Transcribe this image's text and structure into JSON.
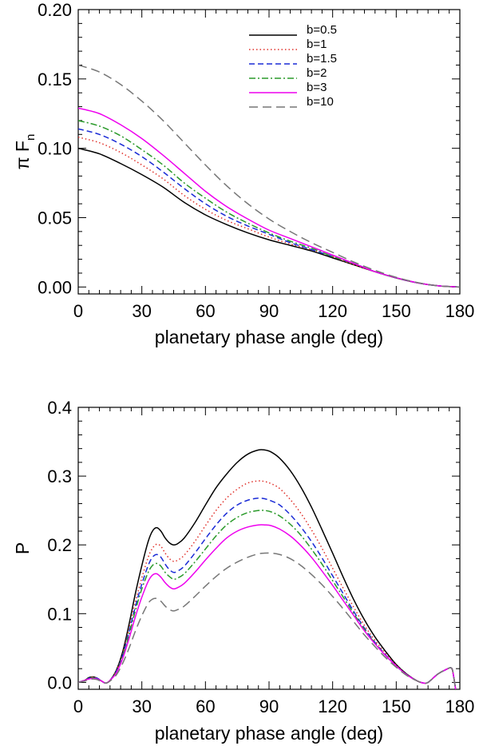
{
  "chart_data": [
    {
      "type": "line",
      "title": "",
      "xlabel": "planetary phase angle (deg)",
      "ylabel_main": "π F",
      "ylabel_sub": "n",
      "xlim": [
        0,
        180
      ],
      "ylim": [
        -0.005,
        0.2
      ],
      "xticks": [
        0,
        30,
        60,
        90,
        120,
        150,
        180
      ],
      "xtick_labels": [
        "0",
        "30",
        "60",
        "90",
        "120",
        "150",
        "180"
      ],
      "yticks": [
        0.0,
        0.05,
        0.1,
        0.15,
        0.2
      ],
      "ytick_labels": [
        "0.00",
        "0.05",
        "0.10",
        "0.15",
        "0.20"
      ],
      "legend": "top-right",
      "x": [
        0,
        10,
        20,
        30,
        40,
        50,
        60,
        70,
        80,
        90,
        100,
        110,
        120,
        130,
        140,
        150,
        160,
        170,
        180
      ],
      "series": [
        {
          "name": "b=0.5",
          "color": "#000000",
          "dash": "",
          "values": [
            0.1,
            0.096,
            0.089,
            0.081,
            0.072,
            0.061,
            0.052,
            0.045,
            0.039,
            0.034,
            0.03,
            0.026,
            0.021,
            0.016,
            0.011,
            0.0065,
            0.003,
            0.0008,
            0.0
          ]
        },
        {
          "name": "b=1",
          "color": "#e0302a",
          "dash": "1.5,3",
          "values": [
            0.108,
            0.104,
            0.097,
            0.088,
            0.078,
            0.066,
            0.056,
            0.048,
            0.042,
            0.036,
            0.031,
            0.027,
            0.022,
            0.016,
            0.011,
            0.0065,
            0.003,
            0.0008,
            0.0
          ]
        },
        {
          "name": "b=1.5",
          "color": "#1a2bd6",
          "dash": "7,4",
          "values": [
            0.114,
            0.11,
            0.103,
            0.094,
            0.083,
            0.071,
            0.06,
            0.051,
            0.044,
            0.038,
            0.032,
            0.027,
            0.022,
            0.017,
            0.011,
            0.0066,
            0.003,
            0.0008,
            0.0
          ]
        },
        {
          "name": "b=2",
          "color": "#2a9a2a",
          "dash": "8,3,2,3",
          "values": [
            0.12,
            0.116,
            0.109,
            0.099,
            0.088,
            0.075,
            0.064,
            0.054,
            0.046,
            0.039,
            0.033,
            0.028,
            0.022,
            0.017,
            0.011,
            0.0066,
            0.003,
            0.0008,
            0.0
          ]
        },
        {
          "name": "b=3",
          "color": "#ee00ee",
          "dash": "",
          "values": [
            0.129,
            0.125,
            0.117,
            0.107,
            0.095,
            0.082,
            0.069,
            0.058,
            0.049,
            0.041,
            0.035,
            0.029,
            0.023,
            0.017,
            0.011,
            0.0067,
            0.003,
            0.0008,
            0.0
          ]
        },
        {
          "name": "b=10",
          "color": "#777777",
          "dash": "11,6",
          "values": [
            0.16,
            0.155,
            0.146,
            0.134,
            0.12,
            0.104,
            0.088,
            0.073,
            0.06,
            0.049,
            0.04,
            0.032,
            0.025,
            0.018,
            0.012,
            0.007,
            0.0032,
            0.0008,
            0.0
          ]
        }
      ]
    },
    {
      "type": "line",
      "title": "",
      "xlabel": "planetary phase angle (deg)",
      "ylabel_main": "P",
      "ylabel_sub": "",
      "xlim": [
        0,
        180
      ],
      "ylim": [
        -0.01,
        0.4
      ],
      "xticks": [
        0,
        30,
        60,
        90,
        120,
        150,
        180
      ],
      "xtick_labels": [
        "0",
        "30",
        "60",
        "90",
        "120",
        "150",
        "180"
      ],
      "yticks": [
        0.0,
        0.1,
        0.2,
        0.3,
        0.4
      ],
      "ytick_labels": [
        "0.0",
        "0.1",
        "0.2",
        "0.3",
        "0.4"
      ],
      "legend": "none",
      "x": [
        0,
        3,
        5,
        7,
        9,
        11,
        13,
        15,
        18,
        21,
        24,
        27,
        30,
        33,
        35,
        37,
        39,
        41,
        43,
        45,
        47,
        50,
        55,
        60,
        65,
        70,
        75,
        80,
        85,
        88,
        91,
        95,
        100,
        105,
        110,
        115,
        120,
        125,
        130,
        135,
        140,
        145,
        150,
        155,
        160,
        163,
        165,
        168,
        170,
        173,
        176,
        177,
        178
      ],
      "series": [
        {
          "name": "b=0.5",
          "color": "#000000",
          "dash": "",
          "values": [
            0.0,
            0.003,
            0.007,
            0.008,
            0.006,
            0.002,
            -0.001,
            0.003,
            0.018,
            0.045,
            0.085,
            0.13,
            0.17,
            0.205,
            0.22,
            0.225,
            0.22,
            0.21,
            0.203,
            0.2,
            0.202,
            0.21,
            0.232,
            0.258,
            0.283,
            0.303,
            0.32,
            0.332,
            0.338,
            0.338,
            0.335,
            0.326,
            0.308,
            0.284,
            0.255,
            0.222,
            0.188,
            0.153,
            0.12,
            0.091,
            0.066,
            0.045,
            0.026,
            0.012,
            0.002,
            -0.001,
            0.0,
            0.008,
            0.013,
            0.018,
            0.021,
            0.01,
            -0.01
          ]
        },
        {
          "name": "b=1",
          "color": "#e0302a",
          "dash": "1.5,3",
          "values": [
            0.0,
            0.003,
            0.006,
            0.008,
            0.006,
            0.002,
            -0.001,
            0.003,
            0.017,
            0.042,
            0.078,
            0.118,
            0.152,
            0.182,
            0.195,
            0.201,
            0.198,
            0.188,
            0.18,
            0.176,
            0.178,
            0.185,
            0.205,
            0.228,
            0.25,
            0.268,
            0.281,
            0.29,
            0.293,
            0.292,
            0.289,
            0.282,
            0.266,
            0.246,
            0.222,
            0.195,
            0.166,
            0.137,
            0.109,
            0.083,
            0.061,
            0.042,
            0.025,
            0.011,
            0.002,
            -0.001,
            0.0,
            0.008,
            0.013,
            0.018,
            0.021,
            0.01,
            -0.01
          ]
        },
        {
          "name": "b=1.5",
          "color": "#1a2bd6",
          "dash": "7,4",
          "values": [
            0.0,
            0.003,
            0.006,
            0.007,
            0.006,
            0.002,
            -0.001,
            0.003,
            0.016,
            0.04,
            0.074,
            0.111,
            0.143,
            0.17,
            0.182,
            0.186,
            0.182,
            0.172,
            0.164,
            0.16,
            0.162,
            0.169,
            0.188,
            0.209,
            0.229,
            0.246,
            0.258,
            0.265,
            0.268,
            0.267,
            0.264,
            0.258,
            0.244,
            0.226,
            0.205,
            0.181,
            0.155,
            0.129,
            0.103,
            0.079,
            0.058,
            0.04,
            0.024,
            0.011,
            0.002,
            -0.001,
            0.0,
            0.008,
            0.013,
            0.018,
            0.021,
            0.01,
            -0.01
          ]
        },
        {
          "name": "b=2",
          "color": "#2a9a2a",
          "dash": "8,3,2,3",
          "values": [
            0.0,
            0.003,
            0.006,
            0.007,
            0.005,
            0.002,
            -0.001,
            0.003,
            0.015,
            0.038,
            0.07,
            0.105,
            0.136,
            0.16,
            0.17,
            0.173,
            0.169,
            0.16,
            0.154,
            0.15,
            0.152,
            0.158,
            0.175,
            0.194,
            0.213,
            0.229,
            0.24,
            0.247,
            0.25,
            0.25,
            0.248,
            0.242,
            0.23,
            0.214,
            0.194,
            0.172,
            0.148,
            0.124,
            0.1,
            0.077,
            0.057,
            0.039,
            0.024,
            0.011,
            0.002,
            -0.001,
            0.0,
            0.008,
            0.013,
            0.018,
            0.021,
            0.01,
            -0.01
          ]
        },
        {
          "name": "b=3",
          "color": "#ee00ee",
          "dash": "",
          "values": [
            0.0,
            0.003,
            0.005,
            0.006,
            0.005,
            0.002,
            -0.001,
            0.003,
            0.014,
            0.035,
            0.064,
            0.096,
            0.124,
            0.147,
            0.156,
            0.158,
            0.153,
            0.145,
            0.139,
            0.136,
            0.138,
            0.144,
            0.16,
            0.178,
            0.195,
            0.21,
            0.22,
            0.226,
            0.229,
            0.229,
            0.228,
            0.223,
            0.213,
            0.199,
            0.182,
            0.162,
            0.141,
            0.119,
            0.097,
            0.075,
            0.056,
            0.039,
            0.024,
            0.011,
            0.002,
            -0.001,
            0.0,
            0.008,
            0.013,
            0.018,
            0.021,
            0.01,
            -0.01
          ]
        },
        {
          "name": "b=10",
          "color": "#777777",
          "dash": "11,6",
          "values": [
            0.0,
            0.002,
            0.004,
            0.005,
            0.004,
            0.001,
            -0.001,
            0.002,
            0.011,
            0.028,
            0.05,
            0.075,
            0.097,
            0.115,
            0.121,
            0.122,
            0.118,
            0.111,
            0.106,
            0.104,
            0.106,
            0.111,
            0.125,
            0.14,
            0.154,
            0.166,
            0.175,
            0.182,
            0.187,
            0.188,
            0.188,
            0.186,
            0.18,
            0.17,
            0.157,
            0.142,
            0.125,
            0.107,
            0.088,
            0.069,
            0.052,
            0.036,
            0.022,
            0.01,
            0.002,
            -0.001,
            0.0,
            0.008,
            0.013,
            0.018,
            0.021,
            0.01,
            -0.01
          ]
        }
      ]
    }
  ]
}
